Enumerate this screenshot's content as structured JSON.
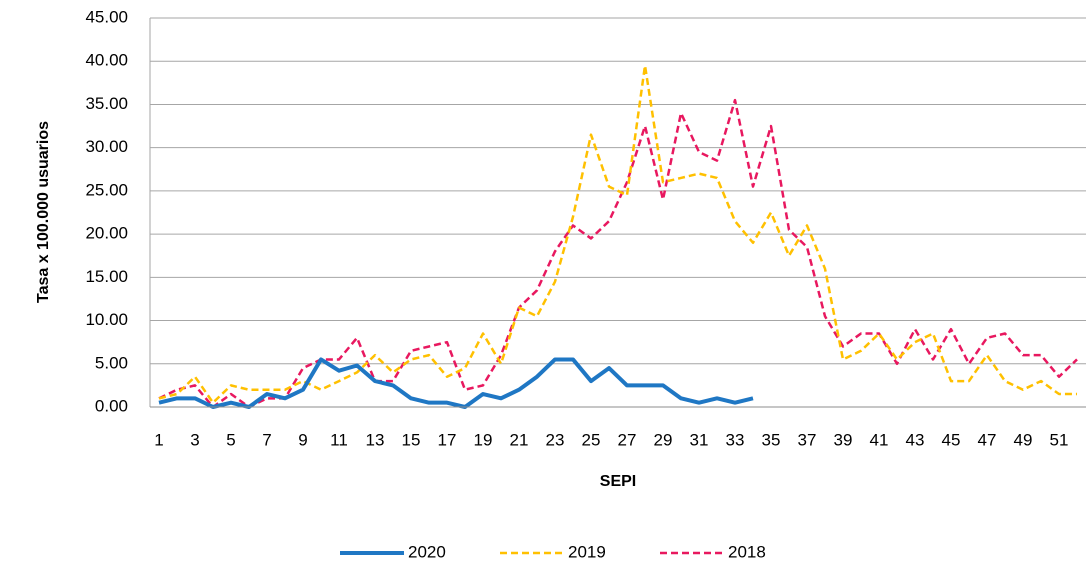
{
  "chart_data": {
    "type": "line",
    "x_label": "SEPI",
    "y_label": "Tasa x 100.000 usuarios",
    "categories": [
      1,
      null,
      3,
      null,
      5,
      null,
      7,
      null,
      9,
      null,
      11,
      null,
      13,
      null,
      15,
      null,
      17,
      null,
      19,
      null,
      21,
      null,
      23,
      null,
      25,
      null,
      27,
      null,
      29,
      null,
      31,
      null,
      33,
      null,
      35,
      null,
      37,
      null,
      39,
      null,
      41,
      null,
      43,
      null,
      45,
      null,
      47,
      null,
      49,
      null,
      51,
      null
    ],
    "ylim": [
      0,
      45
    ],
    "yticks": [
      {
        "value": 0,
        "label": "0.00"
      },
      {
        "value": 5,
        "label": "5.00"
      },
      {
        "value": 10,
        "label": "10.00"
      },
      {
        "value": 15,
        "label": "15.00"
      },
      {
        "value": 20,
        "label": "20.00"
      },
      {
        "value": 25,
        "label": "25.00"
      },
      {
        "value": 30,
        "label": "30.00"
      },
      {
        "value": 35,
        "label": "35.00"
      },
      {
        "value": 40,
        "label": "40.00"
      },
      {
        "value": 45,
        "label": "45.00"
      }
    ],
    "grid": true,
    "legend": "bottom",
    "series": [
      {
        "name": "2020",
        "color": "#1f77c4",
        "dashed": false,
        "values": [
          0.5,
          1,
          1,
          0,
          0.5,
          0,
          1.5,
          1,
          2,
          5.5,
          4.2,
          4.8,
          3,
          2.5,
          1,
          0.5,
          0.5,
          0,
          1.5,
          1,
          2,
          3.5,
          5.5,
          5.5,
          3,
          4.5,
          2.5,
          2.5,
          2.5,
          1,
          0.5,
          1,
          0.5,
          1,
          null,
          null,
          null,
          null,
          null,
          null,
          null,
          null,
          null,
          null,
          null,
          null,
          null,
          null,
          null,
          null,
          null,
          null
        ]
      },
      {
        "name": "2019",
        "color": "#ffc000",
        "dashed": true,
        "values": [
          1,
          1.5,
          3.5,
          0.5,
          2.5,
          2,
          2,
          2,
          3,
          2,
          3,
          4,
          6,
          4,
          5.5,
          6,
          3.5,
          4.5,
          8.5,
          5,
          11.5,
          10.5,
          14.5,
          22,
          31.5,
          25.5,
          24.5,
          39.5,
          26,
          26.5,
          27,
          26.5,
          21.5,
          19,
          22.5,
          17.5,
          21,
          16,
          5.5,
          6.5,
          8.5,
          5.5,
          7.5,
          8.5,
          3,
          3,
          6,
          3,
          2,
          3,
          1.5,
          1.5
        ]
      },
      {
        "name": "2018",
        "color": "#e8185f",
        "dashed": true,
        "values": [
          1,
          2,
          2.5,
          0,
          1.5,
          0,
          1,
          1,
          4.5,
          5.5,
          5.5,
          8,
          3,
          3,
          6.5,
          7,
          7.5,
          2,
          2.5,
          6,
          11.5,
          13.5,
          18,
          21,
          19.5,
          21.5,
          26,
          32.5,
          24,
          34,
          29.5,
          28.5,
          35.5,
          25.5,
          32.5,
          20.5,
          18.5,
          10.5,
          7,
          8.5,
          8.5,
          5,
          9,
          5.5,
          9,
          5,
          8,
          8.5,
          6,
          6,
          3.5,
          5.5
        ]
      }
    ]
  }
}
